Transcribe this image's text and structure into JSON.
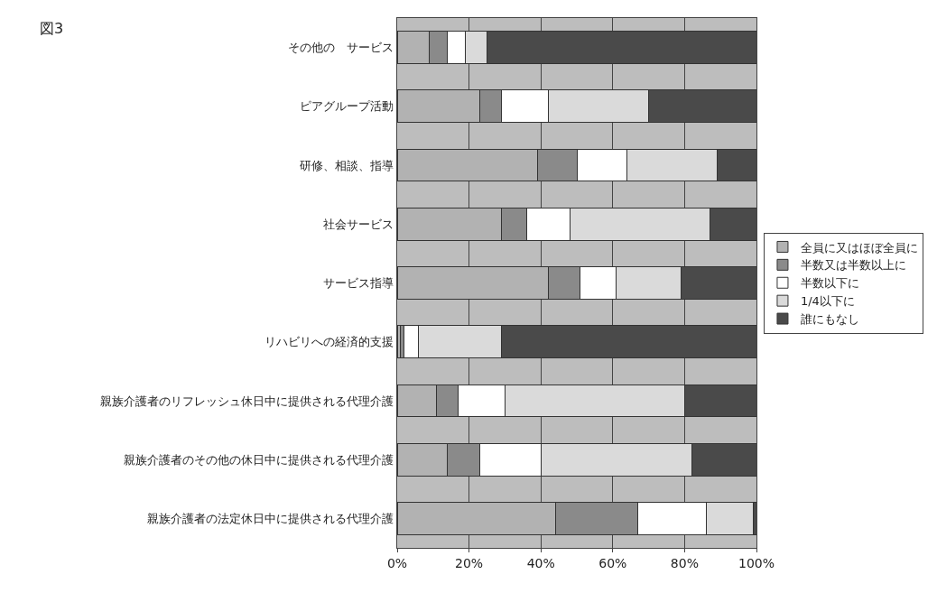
{
  "chart_data": {
    "type": "bar",
    "orientation": "horizontal",
    "stacked": true,
    "title": "図3",
    "categories": [
      "その他の　サービス",
      "ピアグループ活動",
      "研修、相談、指導",
      "社会サービス",
      "サービス指導",
      "リハビリへの経済的支援",
      "親族介護者のリフレッシュ休日中に提供される代理介護",
      "親族介護者のその他の休日中に提供される代理介護",
      "親族介護者の法定休日中に提供される代理介護"
    ],
    "series": [
      {
        "name": "全員に又はほぼ全員に",
        "color": "#b2b2b2",
        "values": [
          9,
          23,
          39,
          29,
          42,
          1,
          11,
          14,
          44
        ]
      },
      {
        "name": "半数又は半数以上に",
        "color": "#8a8a8a",
        "values": [
          5,
          6,
          11,
          7,
          9,
          1,
          6,
          9,
          23
        ]
      },
      {
        "name": "半数以下に",
        "color": "#ffffff",
        "values": [
          5,
          13,
          14,
          12,
          10,
          4,
          13,
          17,
          19
        ]
      },
      {
        "name": "1/4以下に",
        "color": "#dadada",
        "values": [
          6,
          28,
          25,
          39,
          18,
          23,
          50,
          42,
          13
        ]
      },
      {
        "name": "誰にもなし",
        "color": "#4a4a4a",
        "values": [
          75,
          30,
          11,
          13,
          21,
          71,
          20,
          18,
          1
        ]
      }
    ],
    "xlim": [
      0,
      100
    ],
    "xticks": [
      {
        "value": 0,
        "label": "0%"
      },
      {
        "value": 20,
        "label": "20%"
      },
      {
        "value": 40,
        "label": "40%"
      },
      {
        "value": 60,
        "label": "60%"
      },
      {
        "value": 80,
        "label": "80%"
      },
      {
        "value": 100,
        "label": "100%"
      }
    ],
    "grid": "x",
    "legend": "right"
  }
}
